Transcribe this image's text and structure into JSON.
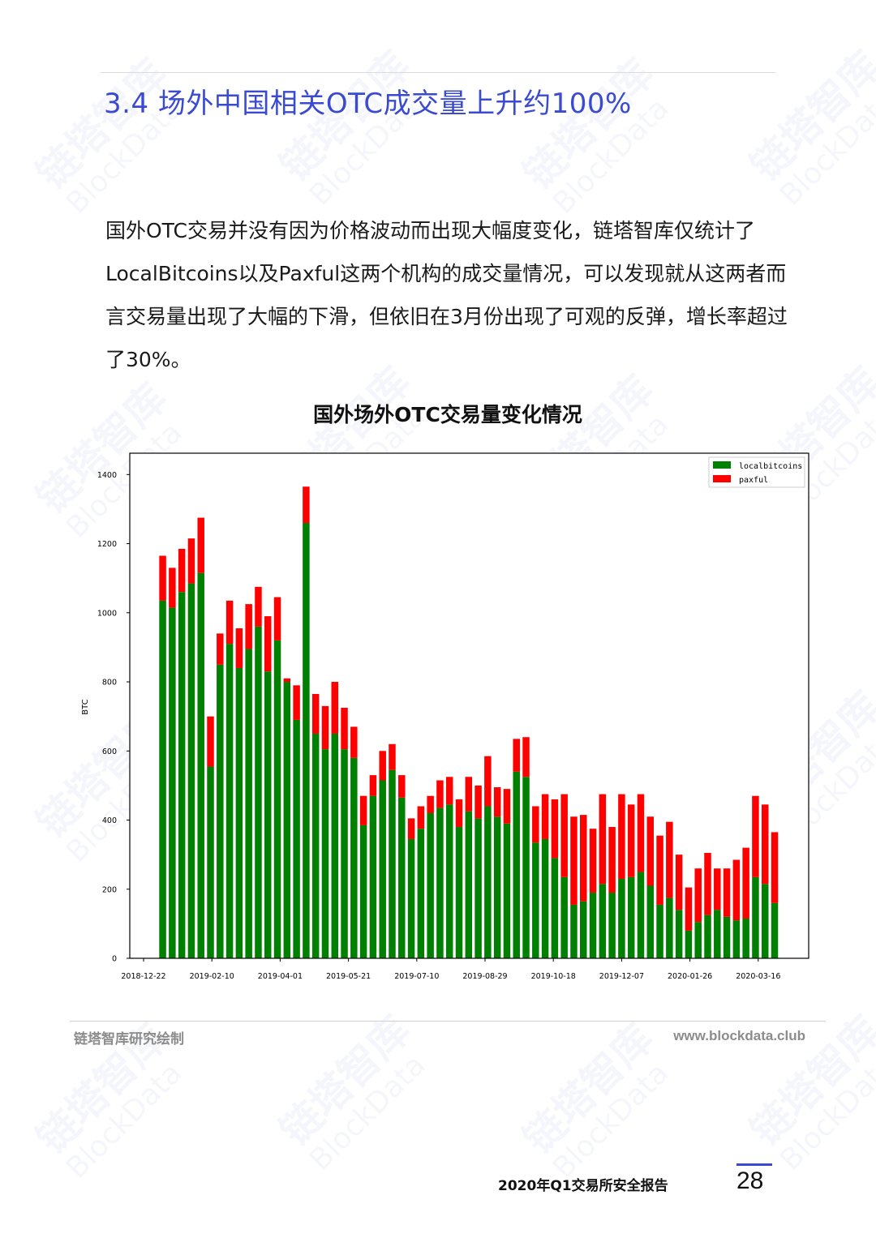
{
  "section": {
    "title": "3.4 场外中国相关OTC成交量上升约100%"
  },
  "body": {
    "paragraph": "国外OTC交易并没有因为价格波动而出现大幅度变化，链塔智库仅统计了LocalBitcoins以及Paxful这两个机构的成交量情况，可以发现就从这两者而言交易量出现了大幅的下滑，但依旧在3月份出现了可观的反弹，增长率超过了30%。"
  },
  "watermark": {
    "brand": "链塔智库",
    "brand_en": "BlockData"
  },
  "chart_data": {
    "type": "bar",
    "stacked": true,
    "title": "国外场外OTC交易量变化情况",
    "xlabel": "",
    "ylabel": "BTC",
    "ylim": [
      0,
      1450
    ],
    "yticks": [
      0,
      200,
      400,
      600,
      800,
      1000,
      1200,
      1400
    ],
    "xtick_labels": [
      "2018-12-22",
      "2019-02-10",
      "2019-04-01",
      "2019-05-21",
      "2019-07-10",
      "2019-08-29",
      "2019-10-18",
      "2019-12-07",
      "2020-01-26",
      "2020-03-16"
    ],
    "x_start": "2019-01-05",
    "x_step_days": 7,
    "legend": {
      "position": "top-right",
      "entries": [
        "localbitcoins",
        "paxful"
      ]
    },
    "grid": false,
    "series": [
      {
        "name": "localbitcoins",
        "color": "#008000",
        "values": [
          1035,
          1015,
          1060,
          1085,
          1115,
          555,
          850,
          910,
          840,
          895,
          960,
          830,
          920,
          800,
          690,
          1260,
          650,
          605,
          650,
          605,
          580,
          385,
          470,
          515,
          545,
          465,
          345,
          375,
          420,
          435,
          445,
          380,
          425,
          405,
          440,
          410,
          390,
          540,
          525,
          335,
          345,
          290,
          235,
          155,
          165,
          190,
          215,
          190,
          230,
          235,
          250,
          210,
          155,
          175,
          140,
          80,
          105,
          125,
          140,
          120,
          110,
          115,
          235,
          215,
          160
        ]
      },
      {
        "name": "paxful",
        "color": "#ff0000",
        "values": [
          130,
          115,
          125,
          130,
          160,
          145,
          90,
          125,
          115,
          130,
          115,
          160,
          125,
          10,
          100,
          105,
          115,
          125,
          150,
          120,
          90,
          85,
          60,
          85,
          75,
          65,
          60,
          65,
          50,
          80,
          80,
          80,
          100,
          95,
          145,
          85,
          100,
          95,
          115,
          105,
          130,
          170,
          240,
          255,
          250,
          185,
          260,
          190,
          245,
          210,
          225,
          200,
          200,
          220,
          160,
          125,
          155,
          180,
          120,
          140,
          175,
          205,
          235,
          230,
          205
        ]
      }
    ]
  },
  "footer": {
    "credit": "链塔智库研究绘制",
    "url": "www.blockdata.club",
    "report_name": "2020年Q1交易所安全报告",
    "page_number": "28"
  }
}
